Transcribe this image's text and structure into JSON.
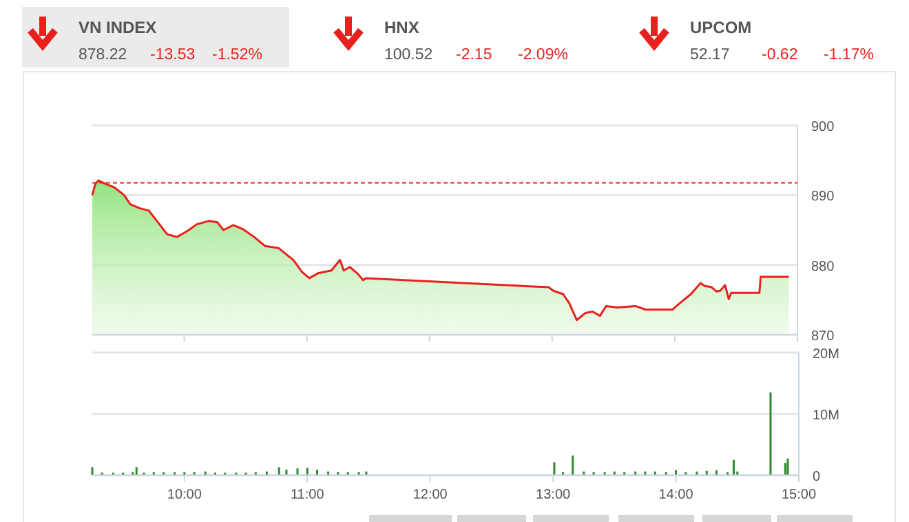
{
  "chart_data": [
    {
      "type": "other",
      "categories": [
        "VN INDEX",
        "HNX",
        "UPCOM"
      ],
      "data_labels": true,
      "series": [
        {
          "values": [
            878.22,
            100.52,
            52.17
          ]
        },
        {
          "color": "#e8211d",
          "values": [
            -13.53,
            -2.15,
            -0.62
          ]
        },
        {
          "color": "#e8211d",
          "values": [
            -1.52,
            -2.09,
            -1.17
          ],
          "value_labels": [
            "-1.52%",
            "-2.09%",
            "-1.17%"
          ]
        }
      ]
    },
    {
      "type": "area",
      "tick_labels": "y",
      "grid": "y",
      "xlim": [
        9.25,
        15
      ],
      "ylim": [
        870,
        900
      ],
      "yticks": [
        870,
        880,
        890,
        900
      ],
      "xticks": [
        {
          "value": 10,
          "label": null
        },
        {
          "value": 11,
          "label": null
        },
        {
          "value": 12,
          "label": null
        },
        {
          "value": 13,
          "label": null
        },
        {
          "value": 14,
          "label": null
        },
        {
          "value": 15,
          "label": null
        }
      ],
      "x": [
        9.25,
        9.275,
        9.3,
        9.36,
        9.43,
        9.51,
        9.56,
        9.64,
        9.71,
        9.79,
        9.86,
        9.94,
        10.03,
        10.1,
        10.2,
        10.27,
        10.32,
        10.4,
        10.48,
        10.57,
        10.66,
        10.77,
        10.89,
        10.96,
        11.02,
        11.09,
        11.2,
        11.27,
        11.3,
        11.35,
        11.41,
        11.46,
        11.48,
        12.97,
        13.01,
        13.09,
        13.14,
        13.2,
        13.27,
        13.33,
        13.39,
        13.44,
        13.53,
        13.68,
        13.76,
        13.87,
        13.98,
        14.06,
        14.13,
        14.21,
        14.24,
        14.3,
        14.34,
        14.37,
        14.41,
        14.44,
        14.46,
        14.69,
        14.7,
        14.93
      ],
      "series": [
        {
          "color": "#e8211d",
          "values": [
            890.0,
            891.6,
            892.1,
            891.6,
            891.1,
            890.0,
            888.7,
            888.1,
            887.8,
            886.0,
            884.4,
            884.0,
            884.9,
            885.8,
            886.3,
            886.1,
            885.0,
            885.7,
            885.1,
            884.0,
            882.7,
            882.4,
            880.7,
            879.0,
            878.1,
            878.8,
            879.2,
            880.7,
            879.2,
            879.7,
            878.8,
            877.8,
            878.1,
            876.8,
            876.3,
            875.8,
            874.5,
            872.1,
            873.1,
            873.3,
            872.7,
            874.1,
            873.9,
            874.1,
            873.6,
            873.6,
            873.6,
            874.8,
            875.8,
            877.4,
            877.0,
            876.8,
            876.2,
            876.3,
            877.1,
            875.1,
            876.0,
            876.0,
            878.3,
            878.3
          ]
        }
      ],
      "ref_lines": [
        {
          "axis": "y",
          "value": 891.75,
          "color": "#e8211d",
          "line_style": "dashed"
        }
      ]
    },
    {
      "type": "bar",
      "grid": "y",
      "color": "#2e8b2e",
      "xlim": [
        9.25,
        15
      ],
      "ylim": [
        0,
        20000000
      ],
      "yticks": [
        0,
        {
          "value": 10000000,
          "label": "10M"
        },
        {
          "value": 20000000,
          "label": "20M"
        }
      ],
      "xticks": [
        {
          "value": 10,
          "label": "10:00"
        },
        {
          "value": 11,
          "label": "11:00"
        },
        {
          "value": 12,
          "label": "12:00"
        },
        {
          "value": 13,
          "label": "13:00"
        },
        {
          "value": 14,
          "label": "14:00"
        },
        {
          "value": 15,
          "label": "15:00"
        }
      ],
      "x": [
        9.25,
        9.33,
        9.42,
        9.5,
        9.58,
        9.61,
        9.67,
        9.75,
        9.83,
        9.92,
        10.0,
        10.08,
        10.17,
        10.25,
        10.33,
        10.42,
        10.5,
        10.58,
        10.67,
        10.77,
        10.83,
        10.92,
        11.0,
        11.08,
        11.17,
        11.25,
        11.33,
        11.42,
        11.48,
        13.01,
        13.08,
        13.16,
        13.25,
        13.33,
        13.42,
        13.5,
        13.58,
        13.67,
        13.75,
        13.83,
        13.92,
        14.0,
        14.08,
        14.17,
        14.25,
        14.33,
        14.42,
        14.47,
        14.5,
        14.77,
        14.89,
        14.91
      ],
      "values": [
        1300000,
        400000,
        400000,
        400000,
        500000,
        1300000,
        400000,
        500000,
        500000,
        500000,
        500000,
        500000,
        600000,
        400000,
        400000,
        400000,
        400000,
        500000,
        600000,
        1300000,
        900000,
        1100000,
        1200000,
        900000,
        600000,
        500000,
        500000,
        500000,
        600000,
        2100000,
        500000,
        3200000,
        600000,
        500000,
        500000,
        600000,
        500000,
        600000,
        600000,
        600000,
        500000,
        800000,
        500000,
        600000,
        700000,
        800000,
        500000,
        2500000,
        600000,
        13500000,
        2000000,
        2700000
      ]
    }
  ]
}
